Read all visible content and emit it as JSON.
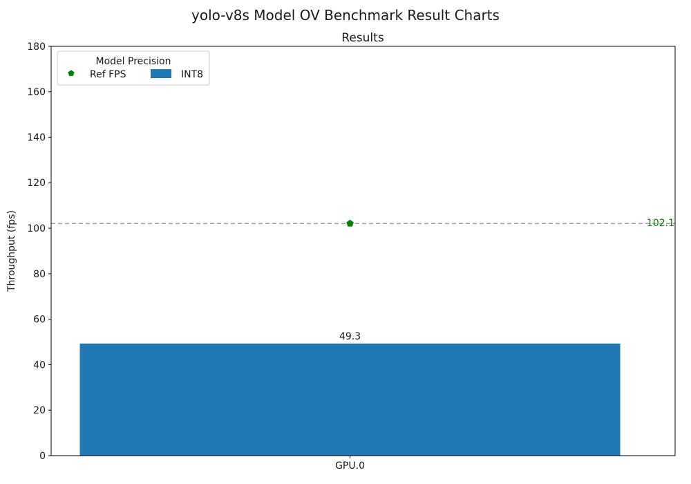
{
  "chart_data": {
    "type": "bar",
    "title": "yolo-v8s Model OV Benchmark Result Charts",
    "axes_title": "Results",
    "ylabel": "Throughput (fps)",
    "xlabel": "",
    "ylim": [
      0,
      180
    ],
    "ytick_step": 20,
    "grid": false,
    "categories": [
      "GPU.0"
    ],
    "series": [
      {
        "name": "INT8",
        "type": "bar",
        "values": [
          49.3
        ],
        "value_labels": [
          "49.3"
        ],
        "color": "#1f77b4"
      }
    ],
    "reference_line": {
      "name": "Ref FPS",
      "value": 102.1,
      "label": "102.1",
      "marker": "pentagon",
      "marker_color": "#008000",
      "line_color": "#808080",
      "line_style": "dashed",
      "label_color": "#008000"
    },
    "legend": {
      "title": "Model Precision",
      "position": "upper-left",
      "entries": [
        {
          "label": "Ref FPS",
          "handle": "pentagon-marker",
          "color": "#008000"
        },
        {
          "label": "INT8",
          "handle": "color-swatch",
          "color": "#1f77b4"
        }
      ]
    },
    "layout": {
      "category_center_frac": 0.479,
      "bar_width_frac": 0.866
    }
  },
  "colors": {
    "text": "#1a1a1a",
    "axes": "#000000",
    "background": "#ffffff",
    "legend_border": "#cccccc"
  }
}
